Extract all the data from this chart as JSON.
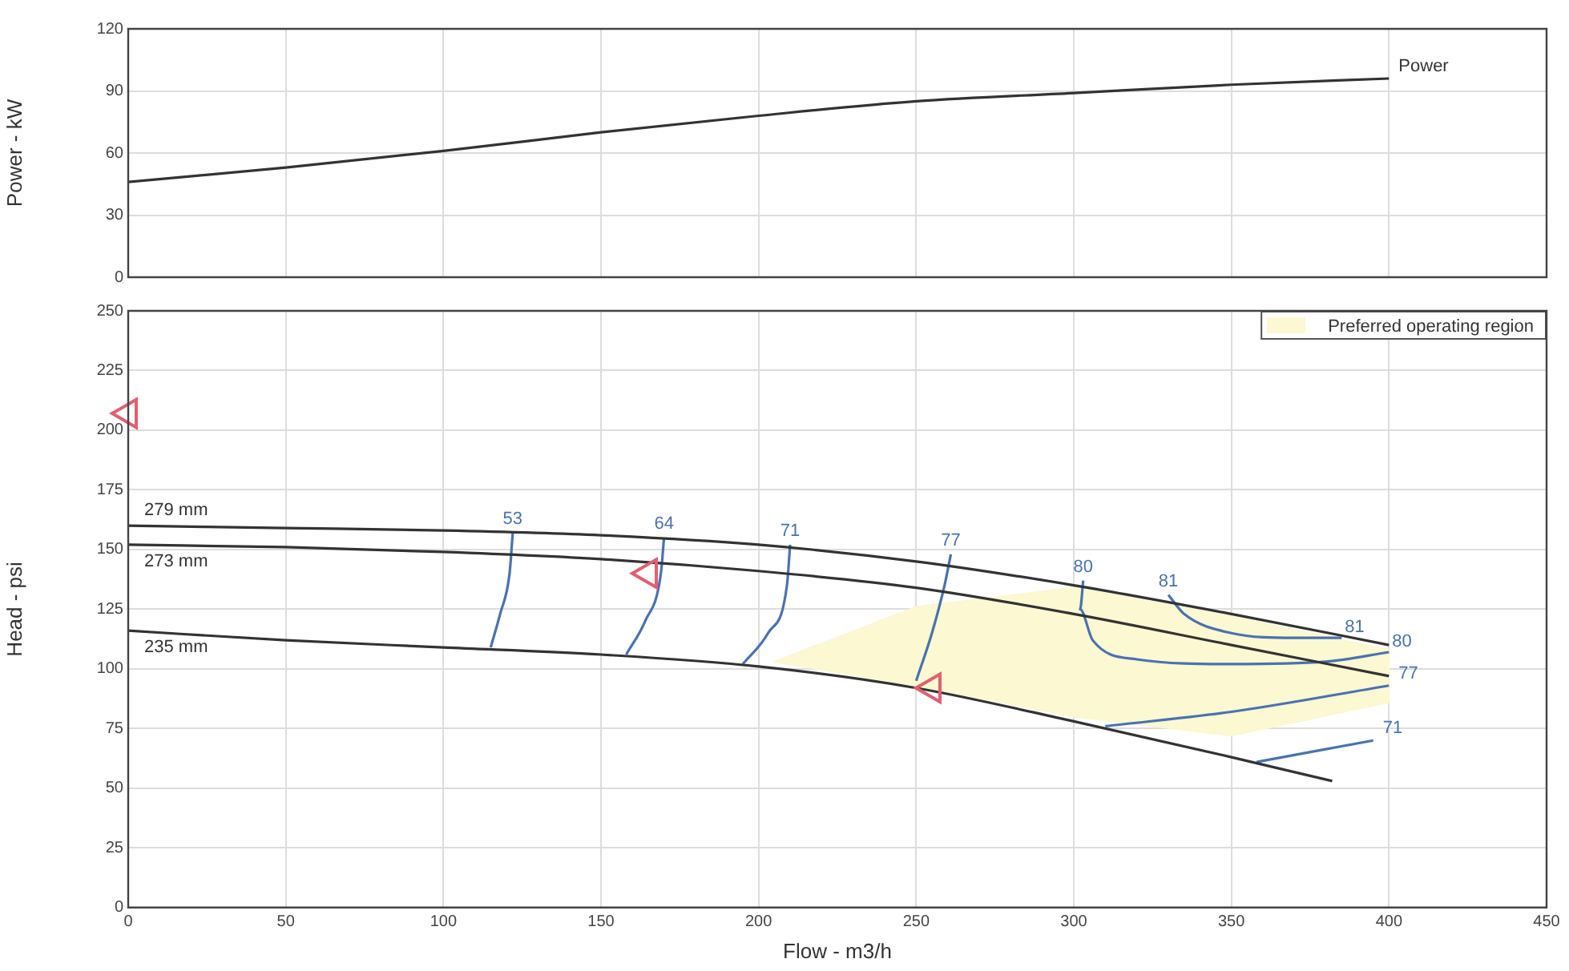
{
  "chart_data": [
    {
      "type": "line",
      "ylabel": "Power - kW",
      "xlim": [
        0,
        450
      ],
      "xticks": [
        0,
        50,
        100,
        150,
        200,
        250,
        300,
        350,
        400,
        450
      ],
      "ylim": [
        0,
        120
      ],
      "yticks": [
        0,
        30,
        60,
        90,
        120
      ],
      "grid": true,
      "tick_labels": "y",
      "marker": "none",
      "series": [
        {
          "name": "Power",
          "color": "#333333",
          "x": [
            0,
            50,
            100,
            150,
            200,
            250,
            300,
            350,
            400
          ],
          "values": [
            46,
            53,
            61,
            70,
            78,
            85,
            89,
            93,
            96
          ]
        }
      ]
    },
    {
      "type": "line",
      "xlabel": "Flow - m3/h",
      "ylabel": "Head - psi",
      "xlim": [
        0,
        450
      ],
      "xticks": [
        0,
        50,
        100,
        150,
        200,
        250,
        300,
        350,
        400,
        450
      ],
      "ylim": [
        0,
        250
      ],
      "yticks": [
        0,
        25,
        50,
        75,
        100,
        125,
        150,
        175,
        200,
        225,
        250
      ],
      "grid": true,
      "legend": "top right",
      "marker": "none",
      "series": [
        {
          "type": "area",
          "name": "Preferred operating region",
          "color": "#fbf8d2",
          "x": [
            205,
            250,
            300,
            350,
            400,
            400,
            350,
            300,
            250,
            205
          ],
          "values": [
            103,
            126,
            134,
            122,
            108,
            86,
            72,
            80,
            93,
            103
          ]
        },
        {
          "name": "279 mm",
          "color": "#333333",
          "x": [
            0,
            50,
            100,
            150,
            200,
            250,
            300,
            350,
            400
          ],
          "values": [
            160,
            159,
            158,
            156,
            152,
            145,
            135,
            123,
            110
          ]
        },
        {
          "name": "273 mm",
          "color": "#333333",
          "x": [
            0,
            50,
            100,
            150,
            200,
            250,
            300,
            350,
            400
          ],
          "values": [
            152,
            151,
            149,
            146,
            141,
            134,
            123,
            110,
            97
          ]
        },
        {
          "name": "235 mm",
          "color": "#333333",
          "x": [
            0,
            50,
            100,
            150,
            200,
            250,
            300,
            350,
            382
          ],
          "values": [
            116,
            112,
            109,
            106,
            101,
            92,
            78,
            63,
            53
          ]
        },
        {
          "name": "53",
          "color": "#4a72b0",
          "x": [
            122,
            121,
            118,
            115
          ],
          "values": [
            157,
            140,
            123,
            109
          ]
        },
        {
          "name": "64",
          "color": "#4a72b0",
          "x": [
            170,
            169,
            164,
            158
          ],
          "values": [
            155,
            140,
            120,
            106
          ]
        },
        {
          "name": "71",
          "color": "#4a72b0",
          "x": [
            210,
            209,
            203,
            195
          ],
          "values": [
            152,
            135,
            115,
            102
          ]
        },
        {
          "name": "77",
          "color": "#4a72b0",
          "x": [
            261,
            259,
            255,
            250
          ],
          "values": [
            148,
            135,
            115,
            95
          ]
        },
        {
          "name": "80",
          "color": "#4a72b0",
          "x": [
            303,
            302,
            306,
            320,
            350,
            380,
            400
          ],
          "values": [
            137,
            125,
            112,
            104,
            102,
            103,
            107
          ]
        },
        {
          "name": "81",
          "color": "#4a72b0",
          "x": [
            330,
            335,
            350,
            370,
            385
          ],
          "values": [
            131,
            123,
            115,
            113,
            113
          ]
        },
        {
          "name": "77",
          "color": "#4a72b0",
          "x": [
            310,
            350,
            400
          ],
          "values": [
            76,
            82,
            93
          ]
        },
        {
          "name": "71",
          "color": "#4a72b0",
          "x": [
            358,
            395
          ],
          "values": [
            61,
            70
          ]
        },
        {
          "type": "scatter",
          "marker": "triangle",
          "color": "#e06070",
          "x": [
            0,
            165,
            255
          ],
          "values": [
            207,
            140,
            92
          ]
        }
      ]
    }
  ]
}
